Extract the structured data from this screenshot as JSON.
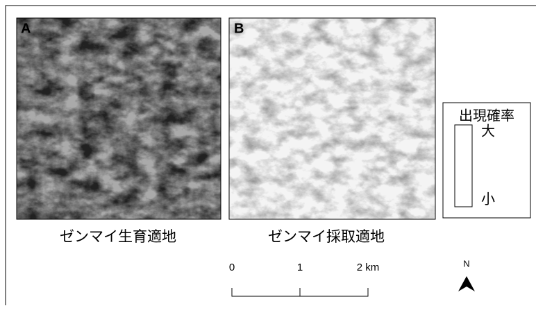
{
  "panels": [
    {
      "label": "A",
      "caption": "ゼンマイ生育適地"
    },
    {
      "label": "B",
      "caption": "ゼンマイ採取適地"
    }
  ],
  "legend": {
    "title": "出現確率",
    "high": "大",
    "low": "小"
  },
  "scale_bar": {
    "labels": [
      "0",
      "1",
      "2 km"
    ]
  },
  "north_arrow": {
    "label": "N"
  }
}
